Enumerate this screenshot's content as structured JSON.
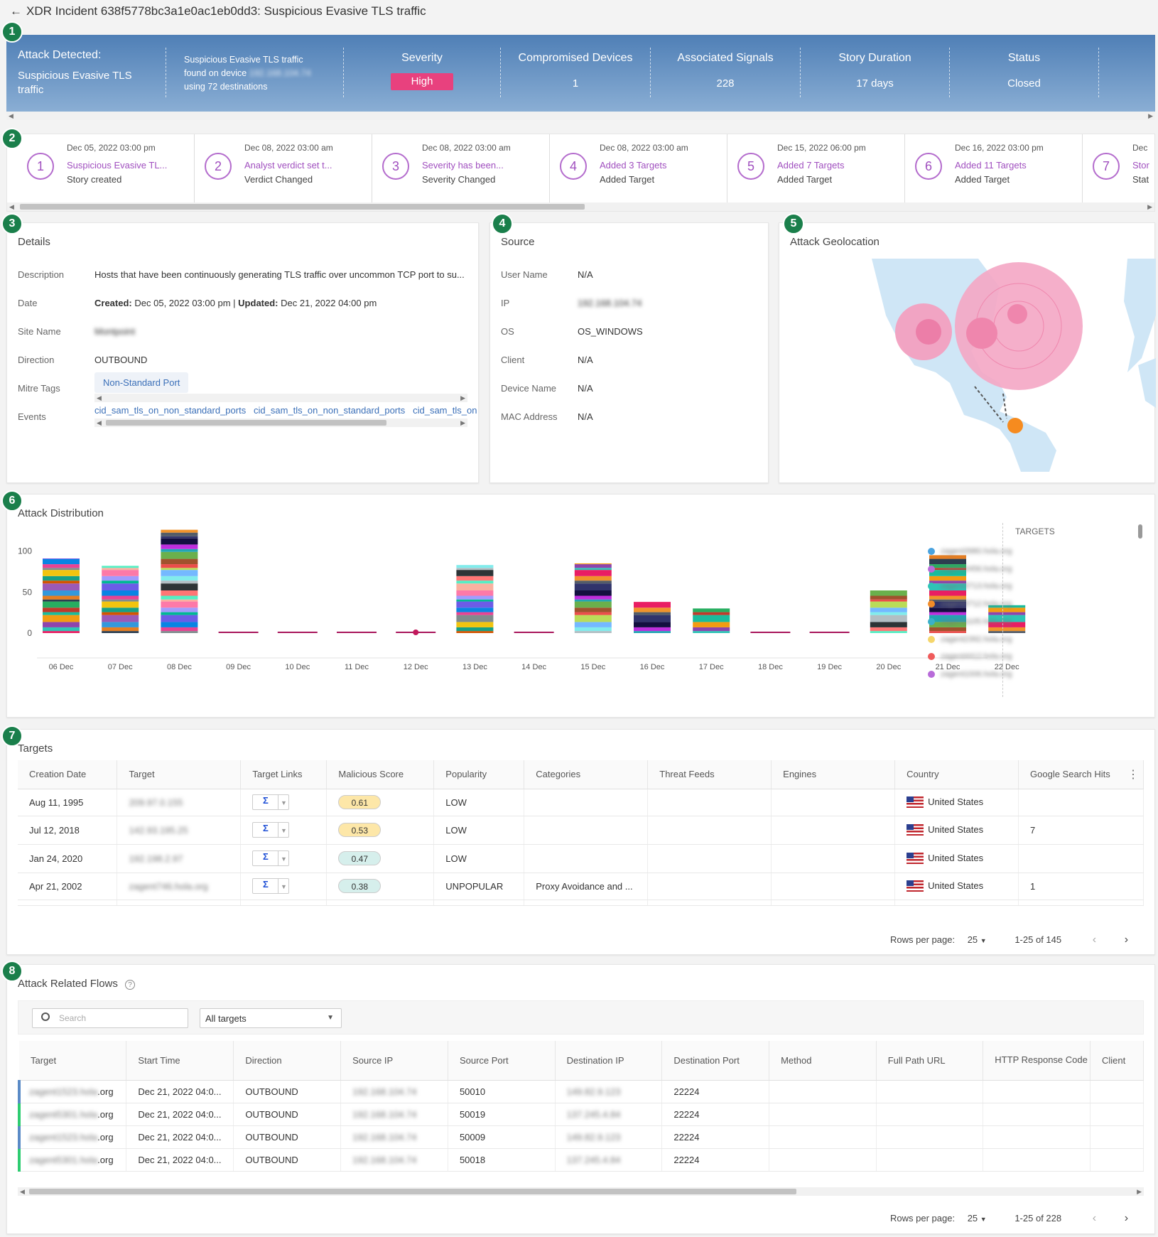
{
  "header": {
    "back_icon": "arrow-left-icon",
    "title": "XDR Incident 638f5778bc3a1e0ac1eb0dd3: Suspicious Evasive TLS traffic"
  },
  "badges": [
    "1",
    "2",
    "3",
    "4",
    "5",
    "6",
    "7",
    "8"
  ],
  "summary": {
    "attack_label": "Attack Detected:",
    "attack_name": "Suspicious Evasive TLS traffic",
    "desc_line1": "Suspicious Evasive TLS traffic",
    "desc_line2": "found on device",
    "desc_device": "192.168.104.74",
    "desc_line3": "using 72 destinations",
    "severity_label": "Severity",
    "severity_value": "High",
    "severity_color": "#e8417e",
    "devices_label": "Compromised Devices",
    "devices_value": "1",
    "signals_label": "Associated Signals",
    "signals_value": "228",
    "duration_label": "Story Duration",
    "duration_value": "17 days",
    "status_label": "Status",
    "status_value": "Closed"
  },
  "timeline": [
    {
      "num": "1",
      "date": "Dec 05, 2022 03:00 pm",
      "title": "Suspicious Evasive TL...",
      "sub": "Story created"
    },
    {
      "num": "2",
      "date": "Dec 08, 2022 03:00 am",
      "title": "Analyst verdict set t...",
      "sub": "Verdict Changed"
    },
    {
      "num": "3",
      "date": "Dec 08, 2022 03:00 am",
      "title": "Severity has been...",
      "sub": "Severity Changed"
    },
    {
      "num": "4",
      "date": "Dec 08, 2022 03:00 am",
      "title": "Added 3 Targets",
      "sub": "Added Target"
    },
    {
      "num": "5",
      "date": "Dec 15, 2022 06:00 pm",
      "title": "Added 7 Targets",
      "sub": "Added Target"
    },
    {
      "num": "6",
      "date": "Dec 16, 2022 03:00 pm",
      "title": "Added 11 Targets",
      "sub": "Added Target"
    },
    {
      "num": "7",
      "date": "Dec",
      "title": "Stor",
      "sub": "Stat"
    }
  ],
  "details": {
    "title": "Details",
    "description_label": "Description",
    "description": "Hosts that have been continuously generating TLS traffic over uncommon TCP port to su...",
    "date_label": "Date",
    "created_label": "Created:",
    "created": "Dec 05, 2022 03:00 pm",
    "sep": "|",
    "updated_label": "Updated:",
    "updated": "Dec 21, 2022 04:00 pm",
    "site_label": "Site Name",
    "site": "Montpoint",
    "direction_label": "Direction",
    "direction": "OUTBOUND",
    "mitre_label": "Mitre Tags",
    "mitre_tag": "Non-Standard Port",
    "events_label": "Events",
    "events": [
      "cid_sam_tls_on_non_standard_ports",
      "cid_sam_tls_on_non_standard_ports",
      "cid_sam_tls_on"
    ]
  },
  "source": {
    "title": "Source",
    "rows": [
      {
        "label": "User Name",
        "value": "N/A"
      },
      {
        "label": "IP",
        "value": "192.168.104.74"
      },
      {
        "label": "OS",
        "value": "OS_WINDOWS"
      },
      {
        "label": "Client",
        "value": "N/A"
      },
      {
        "label": "Device Name",
        "value": "N/A"
      },
      {
        "label": "MAC Address",
        "value": "N/A"
      }
    ]
  },
  "geo": {
    "title": "Attack Geolocation"
  },
  "distribution": {
    "title": "Attack Distribution",
    "legend_title": "TARGETS",
    "legend": [
      {
        "name": "zagent3980.hola.org",
        "color": "#4aa3df"
      },
      {
        "name": "zagent2456.hola.org",
        "color": "#b86bd9"
      },
      {
        "name": "zagent3713.hola.org",
        "color": "#2ec4b6"
      },
      {
        "name": "zagent3712.hola.org",
        "color": "#f28c28"
      },
      {
        "name": "zagent1105.hola.org",
        "color": "#3ab0c9"
      },
      {
        "name": "zagent2392.hola.org",
        "color": "#f5d66b"
      },
      {
        "name": "zagent4412.hola.org",
        "color": "#ef5b5b"
      },
      {
        "name": "zagent1006.hola.org",
        "color": "#b86bd9"
      }
    ]
  },
  "chart_data": {
    "type": "bar",
    "stacked": true,
    "categories": [
      "06 Dec",
      "07 Dec",
      "08 Dec",
      "09 Dec",
      "10 Dec",
      "11 Dec",
      "12 Dec",
      "13 Dec",
      "14 Dec",
      "15 Dec",
      "16 Dec",
      "17 Dec",
      "18 Dec",
      "19 Dec",
      "20 Dec",
      "21 Dec",
      "22 Dec"
    ],
    "values": [
      91,
      82,
      126,
      1,
      1,
      1,
      1,
      83,
      1,
      85,
      38,
      30,
      1,
      1,
      52,
      95,
      34
    ],
    "yticks": [
      0,
      50,
      100
    ],
    "ylim": [
      0,
      130
    ],
    "legend_position": "right"
  },
  "targets": {
    "title": "Targets",
    "columns": [
      "Creation Date",
      "Target",
      "Target Links",
      "Malicious Score",
      "Popularity",
      "Categories",
      "Threat Feeds",
      "Engines",
      "Country",
      "Google Search Hits"
    ],
    "menu_icon": "more-vertical-icon",
    "rows": [
      {
        "date": "Aug 11, 1995",
        "target": "209.97.0.155",
        "score": "0.61",
        "score_bg": "#fde7a8",
        "pop": "LOW",
        "cat": "",
        "country": "United States",
        "hits": ""
      },
      {
        "date": "Jul 12, 2018",
        "target": "142.93.195.25",
        "score": "0.53",
        "score_bg": "#fde7a8",
        "pop": "LOW",
        "cat": "",
        "country": "United States",
        "hits": "7"
      },
      {
        "date": "Jan 24, 2020",
        "target": "192.198.2.97",
        "score": "0.47",
        "score_bg": "#d6efec",
        "pop": "LOW",
        "cat": "",
        "country": "United States",
        "hits": ""
      },
      {
        "date": "Apr 21, 2002",
        "target": "zagent746.hola.org",
        "score": "0.38",
        "score_bg": "#d6efec",
        "pop": "UNPOPULAR",
        "cat": "Proxy Avoidance and ...",
        "country": "United States",
        "hits": "1"
      }
    ],
    "rows_per_page_label": "Rows per page:",
    "rows_per_page": "25",
    "range": "1-25 of 145"
  },
  "flows": {
    "title": "Attack Related Flows",
    "help_icon": "help-circle-icon",
    "search_placeholder": "Search",
    "filter_value": "All targets",
    "columns": [
      "Target",
      "Start Time",
      "Direction",
      "Source IP",
      "Source Port",
      "Destination IP",
      "Destination Port",
      "Method",
      "Full Path URL",
      "HTTP Response Code",
      "Client"
    ],
    "rows": [
      {
        "target": "zagent1523.hola",
        "suffix": ".org",
        "start": "Dec 21, 2022 04:0...",
        "dir": "OUTBOUND",
        "src": "192.168.104.74",
        "sport": "50010",
        "dst": "149.82.9.123",
        "dport": "22224",
        "bar": "#5a8ac6"
      },
      {
        "target": "zagent5301.hola",
        "suffix": ".org",
        "start": "Dec 21, 2022 04:0...",
        "dir": "OUTBOUND",
        "src": "192.168.104.74",
        "sport": "50019",
        "dst": "137.245.4.84",
        "dport": "22224",
        "bar": "#2ecc71"
      },
      {
        "target": "zagent1523.hola",
        "suffix": ".org",
        "start": "Dec 21, 2022 04:0...",
        "dir": "OUTBOUND",
        "src": "192.168.104.74",
        "sport": "50009",
        "dst": "149.82.9.123",
        "dport": "22224",
        "bar": "#5a8ac6"
      },
      {
        "target": "zagent5301.hola",
        "suffix": ".org",
        "start": "Dec 21, 2022 04:0...",
        "dir": "OUTBOUND",
        "src": "192.168.104.74",
        "sport": "50018",
        "dst": "137.245.4.84",
        "dport": "22224",
        "bar": "#2ecc71"
      }
    ],
    "rows_per_page_label": "Rows per page:",
    "rows_per_page": "25",
    "range": "1-25 of 228"
  }
}
